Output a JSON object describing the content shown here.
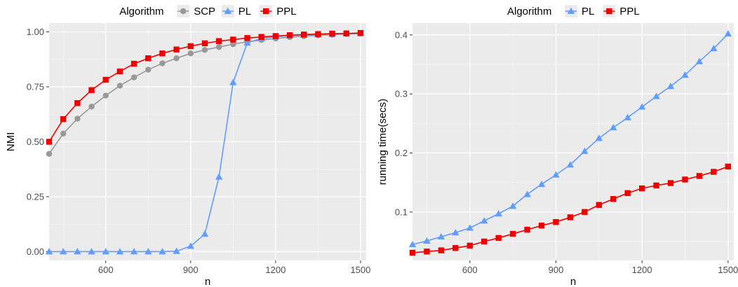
{
  "chart_data": [
    {
      "type": "line",
      "xlabel": "n",
      "ylabel": "NMI",
      "xlim": [
        400,
        1520
      ],
      "ylim": [
        -0.04,
        1.04
      ],
      "xticks": [
        "600",
        "900",
        "1200",
        "1500"
      ],
      "yticks": [
        "0.00",
        "0.25",
        "0.50",
        "0.75",
        "1.00"
      ],
      "grid": true,
      "legend_title": "Algorithm",
      "legend_position": "top",
      "x": [
        400,
        450,
        500,
        550,
        600,
        650,
        700,
        750,
        800,
        850,
        900,
        950,
        1000,
        1050,
        1100,
        1150,
        1200,
        1250,
        1300,
        1350,
        1400,
        1450,
        1500
      ],
      "series": [
        {
          "name": "SCP",
          "color": "#999999",
          "marker": "circle",
          "values": [
            0.445,
            0.537,
            0.605,
            0.66,
            0.71,
            0.755,
            0.793,
            0.828,
            0.857,
            0.88,
            0.902,
            0.918,
            0.931,
            0.944,
            0.955,
            0.963,
            0.97,
            0.976,
            0.98,
            0.984,
            0.987,
            0.99,
            0.992
          ]
        },
        {
          "name": "PL",
          "color": "#619CFF",
          "marker": "triangle",
          "values": [
            0.0,
            0.0,
            0.0,
            0.0,
            0.0,
            0.0,
            0.0,
            0.0,
            0.0,
            0.002,
            0.025,
            0.08,
            0.34,
            0.77,
            0.95,
            0.97,
            0.978,
            0.983,
            0.986,
            0.988,
            0.99,
            0.992,
            0.994
          ]
        },
        {
          "name": "PPL",
          "color": "#EE0000",
          "marker": "square",
          "values": [
            0.5,
            0.603,
            0.676,
            0.735,
            0.782,
            0.82,
            0.855,
            0.88,
            0.902,
            0.92,
            0.935,
            0.948,
            0.958,
            0.965,
            0.972,
            0.977,
            0.981,
            0.985,
            0.988,
            0.99,
            0.992,
            0.993,
            0.995
          ]
        }
      ]
    },
    {
      "type": "line",
      "xlabel": "n",
      "ylabel": "running time(secs)",
      "xlim": [
        400,
        1520
      ],
      "ylim": [
        0.018,
        0.42
      ],
      "xticks": [
        "600",
        "900",
        "1200",
        "1500"
      ],
      "yticks": [
        "0.1",
        "0.2",
        "0.3",
        "0.4"
      ],
      "grid": true,
      "legend_title": "Algorithm",
      "legend_position": "top",
      "x": [
        400,
        450,
        500,
        550,
        600,
        650,
        700,
        750,
        800,
        850,
        900,
        950,
        1000,
        1050,
        1100,
        1150,
        1200,
        1250,
        1300,
        1350,
        1400,
        1450,
        1500
      ],
      "series": [
        {
          "name": "PL",
          "color": "#619CFF",
          "marker": "triangle",
          "values": [
            0.045,
            0.051,
            0.058,
            0.065,
            0.073,
            0.085,
            0.097,
            0.11,
            0.13,
            0.147,
            0.163,
            0.18,
            0.203,
            0.225,
            0.243,
            0.26,
            0.278,
            0.296,
            0.313,
            0.332,
            0.355,
            0.377,
            0.402
          ]
        },
        {
          "name": "PPL",
          "color": "#EE0000",
          "marker": "square",
          "values": [
            0.031,
            0.033,
            0.035,
            0.039,
            0.043,
            0.05,
            0.056,
            0.063,
            0.07,
            0.077,
            0.083,
            0.091,
            0.1,
            0.112,
            0.122,
            0.132,
            0.14,
            0.145,
            0.149,
            0.155,
            0.161,
            0.168,
            0.177
          ]
        }
      ]
    }
  ]
}
